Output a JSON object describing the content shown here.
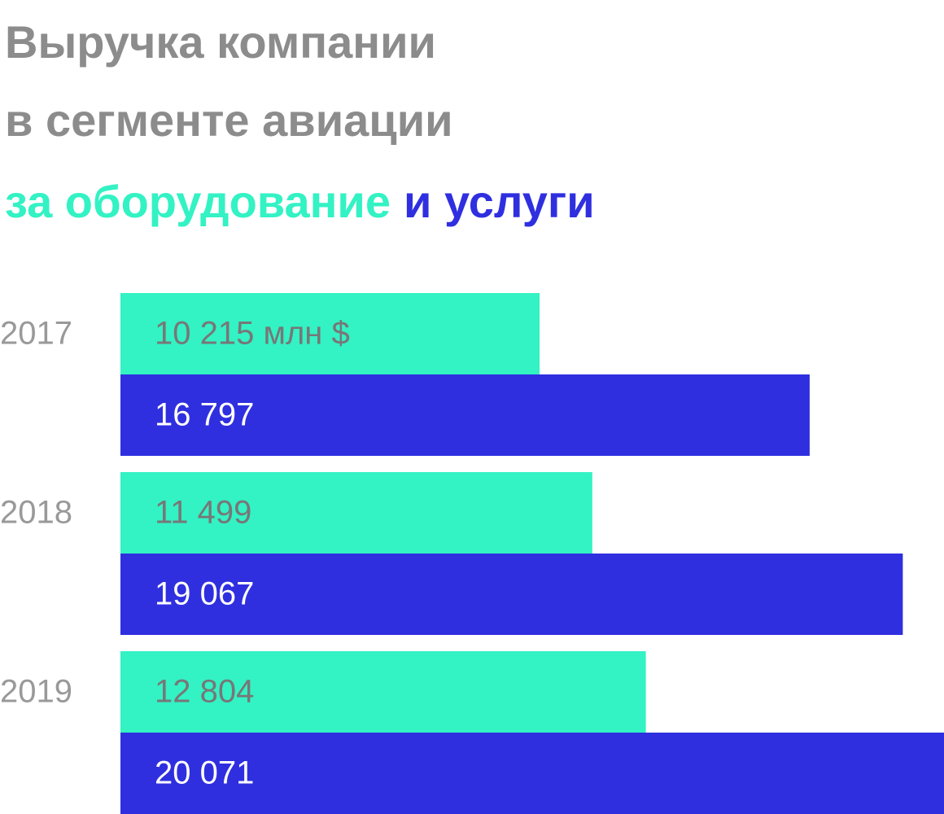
{
  "chart_data": {
    "type": "bar",
    "orientation": "horizontal",
    "title": [
      "Выручка компании",
      "в сегменте авиации"
    ],
    "categories": [
      "2017",
      "2018",
      "2019"
    ],
    "series": [
      {
        "name": "за оборудование",
        "color": "#33f2c4",
        "label_color": "#777777",
        "values": [
          10215,
          11499,
          12804
        ],
        "value_labels": [
          "10 215 млн $",
          "11 499",
          "12 804"
        ]
      },
      {
        "name": "и услуги",
        "color": "#2f2fe0",
        "label_color": "#ffffff",
        "values": [
          16797,
          19067,
          20071
        ],
        "value_labels": [
          "16 797",
          "19 067",
          "20 071"
        ]
      }
    ]
  }
}
